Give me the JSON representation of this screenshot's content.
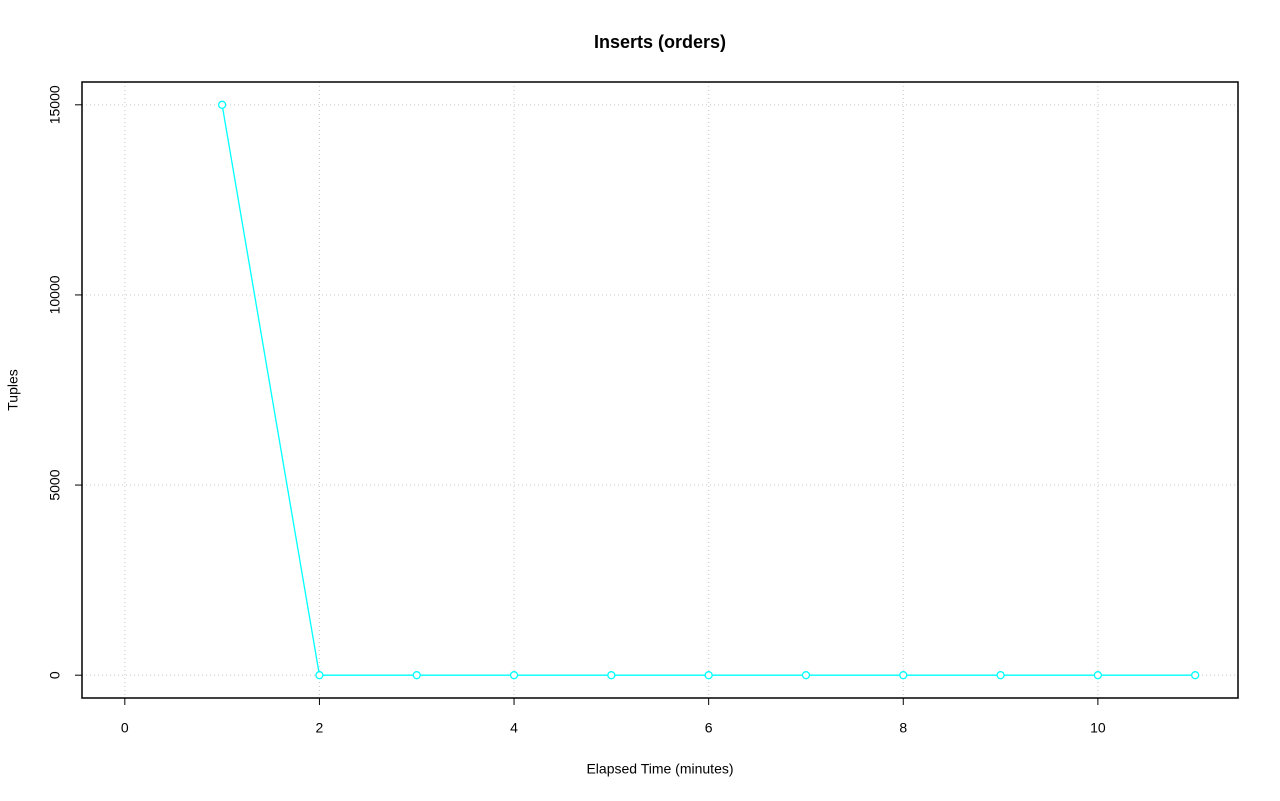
{
  "chart_data": {
    "type": "line",
    "title": "Inserts (orders)",
    "x_label": "Elapsed Time (minutes)",
    "y_label": "Tuples",
    "x": [
      1,
      2,
      3,
      4,
      5,
      6,
      7,
      8,
      9,
      10,
      11
    ],
    "values": [
      15000,
      0,
      0,
      0,
      0,
      0,
      0,
      0,
      0,
      0,
      0
    ],
    "color": "#00ffff",
    "xlim": [
      -0.44,
      11.44
    ],
    "xticks": [
      0,
      2,
      4,
      6,
      8,
      10
    ],
    "ylim": [
      -600,
      15600
    ],
    "yticks": [
      0,
      5000,
      10000,
      15000
    ],
    "grid": true
  }
}
